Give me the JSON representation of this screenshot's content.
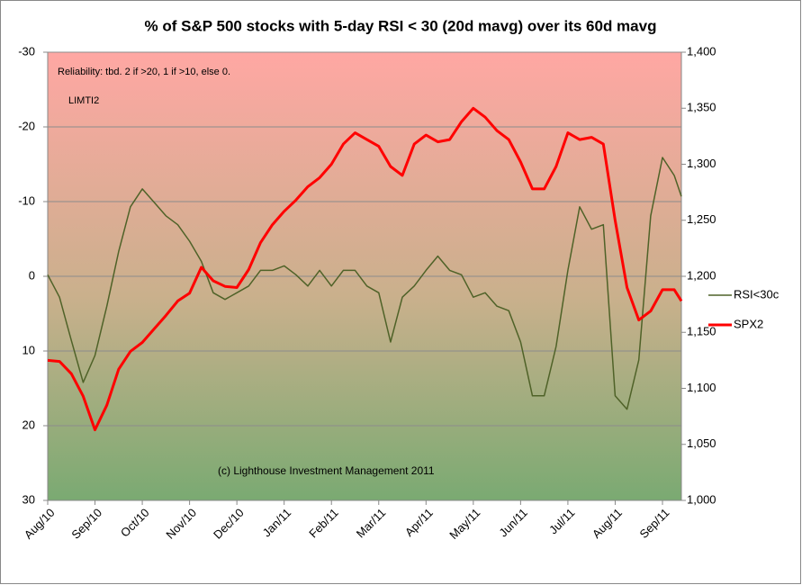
{
  "chart_data": {
    "type": "line",
    "title": "% of S&P 500 stocks with 5-day RSI < 30 (20d mavg) over its 60d mavg",
    "annotations": [
      "Reliability: tbd. 2 if >20, 1 if >10,  else 0.",
      "LIMTI2",
      "(c) Lighthouse Investment Management 2011"
    ],
    "x": [
      0,
      0.25,
      0.5,
      0.75,
      1,
      1.25,
      1.5,
      1.75,
      2,
      2.25,
      2.5,
      2.75,
      3,
      3.25,
      3.5,
      3.75,
      4,
      4.25,
      4.5,
      4.75,
      5,
      5.25,
      5.5,
      5.75,
      6,
      6.25,
      6.5,
      6.75,
      7,
      7.25,
      7.5,
      7.75,
      8,
      8.25,
      8.5,
      8.75,
      9,
      9.25,
      9.5,
      9.75,
      10,
      10.25,
      10.5,
      10.75,
      11,
      11.25,
      11.5,
      11.75,
      12,
      12.25,
      12.5,
      12.75,
      13,
      13.25,
      13.4
    ],
    "xlim": [
      0,
      13.4
    ],
    "xticks": [
      {
        "value": 0,
        "label": "Aug/10"
      },
      {
        "value": 1,
        "label": "Sep/10"
      },
      {
        "value": 2,
        "label": "Oct/10"
      },
      {
        "value": 3,
        "label": "Nov/10"
      },
      {
        "value": 4,
        "label": "Dec/10"
      },
      {
        "value": 5,
        "label": "Jan/11"
      },
      {
        "value": 6,
        "label": "Feb/11"
      },
      {
        "value": 7,
        "label": "Mar/11"
      },
      {
        "value": 8,
        "label": "Apr/11"
      },
      {
        "value": 9,
        "label": "May/11"
      },
      {
        "value": 10,
        "label": "Jun/11"
      },
      {
        "value": 11,
        "label": "Jul/11"
      },
      {
        "value": 12,
        "label": "Aug/11"
      },
      {
        "value": 13,
        "label": "Sep/11"
      }
    ],
    "ylim": [
      -30,
      30
    ],
    "y_inverted": true,
    "yticks": [
      -30,
      -20,
      -10,
      0,
      10,
      20,
      30
    ],
    "y2lim": [
      1000,
      1400
    ],
    "y2ticks": [
      {
        "value": 1000,
        "label": "1,000"
      },
      {
        "value": 1050,
        "label": "1,050"
      },
      {
        "value": 1100,
        "label": "1,100"
      },
      {
        "value": 1150,
        "label": "1,150"
      },
      {
        "value": 1200,
        "label": "1,200"
      },
      {
        "value": 1250,
        "label": "1,250"
      },
      {
        "value": 1300,
        "label": "1,300"
      },
      {
        "value": 1350,
        "label": "1,350"
      },
      {
        "value": 1400,
        "label": "1,400"
      }
    ],
    "grid": true,
    "legend": "right",
    "series": [
      {
        "name": "RSI<30c",
        "color": "#4f6228",
        "width": 1.5,
        "values": [
          -0.2,
          2.8,
          8.6,
          14.2,
          10.6,
          4.0,
          -3.3,
          -9.3,
          -11.7,
          -9.9,
          -8.1,
          -6.9,
          -4.7,
          -2.0,
          2.2,
          3.1,
          2.2,
          1.3,
          -0.8,
          -0.8,
          -1.4,
          -0.2,
          1.3,
          -0.8,
          1.3,
          -0.8,
          -0.8,
          1.3,
          2.2,
          8.8,
          2.8,
          1.3,
          -0.8,
          -2.7,
          -0.8,
          -0.2,
          2.8,
          2.2,
          4.0,
          4.6,
          8.8,
          16.0,
          16.0,
          9.4,
          -0.8,
          -9.3,
          -6.3,
          -6.9,
          16.0,
          17.8,
          11.2,
          -8.1,
          -15.9,
          -13.5,
          -10.7
        ]
      },
      {
        "name": "SPX2",
        "color": "#ff0000",
        "width": 3,
        "axis": "y2",
        "values": [
          1125,
          1124,
          1113,
          1093,
          1063,
          1085,
          1117,
          1133,
          1141,
          1153,
          1165,
          1178,
          1185,
          1208,
          1196,
          1191,
          1190,
          1206,
          1230,
          1246,
          1258,
          1268,
          1280,
          1288,
          1300,
          1318,
          1328,
          1322,
          1316,
          1298,
          1290,
          1318,
          1326,
          1320,
          1322,
          1338,
          1350,
          1342,
          1330,
          1322,
          1302,
          1278,
          1278,
          1298,
          1328,
          1322,
          1324,
          1318,
          1250,
          1190,
          1161,
          1169,
          1188,
          1188,
          1178
        ]
      }
    ]
  }
}
